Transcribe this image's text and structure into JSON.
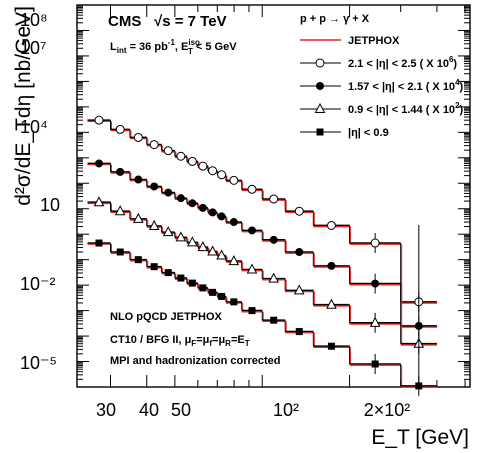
{
  "chart_data": {
    "type": "scatter",
    "xscale": "log",
    "yscale": "log",
    "xlim": [
      23,
      520
    ],
    "ylim": [
      1e-06,
      1000000000.0
    ],
    "xlabel": "E_T [GeV]",
    "ylabel": "d²σ/dE_Tdη [nb/GeV]",
    "x_ticklabels": [
      "30",
      "40",
      "50",
      "10²",
      "2×10²"
    ],
    "x_tick_values": [
      30,
      40,
      50,
      100,
      200
    ],
    "y_ticklabels": [
      "10⁸",
      "10⁷",
      "10⁴",
      "10",
      "10⁻²",
      "10⁻⁵"
    ],
    "y_tick_values": [
      100000000.0,
      10000000.0,
      10000.0,
      10,
      0.01,
      1e-05
    ],
    "bins": [
      [
        25,
        30
      ],
      [
        30,
        35
      ],
      [
        35,
        40
      ],
      [
        40,
        45
      ],
      [
        45,
        50
      ],
      [
        50,
        55
      ],
      [
        55,
        60
      ],
      [
        60,
        65
      ],
      [
        65,
        70
      ],
      [
        70,
        75
      ],
      [
        75,
        85
      ],
      [
        85,
        100
      ],
      [
        100,
        120
      ],
      [
        120,
        150
      ],
      [
        150,
        200
      ],
      [
        200,
        300
      ],
      [
        300,
        400
      ]
    ],
    "series": [
      {
        "name": "2.1 < |η| < 2.5 ( X 10⁶)",
        "marker": "open-circle",
        "values": [
          30000,
          13000,
          6300,
          3300,
          1900,
          1150,
          720,
          470,
          310,
          215,
          130,
          58,
          24,
          8.0,
          2.2,
          0.45,
          0.0022
        ]
      },
      {
        "name": "1.57 < |η| < 2.1 ( X 10⁴)",
        "marker": "filled-circle",
        "values": [
          600,
          280,
          140,
          75,
          43,
          26,
          16.5,
          10.8,
          7.2,
          5.0,
          3.0,
          1.4,
          0.6,
          0.2,
          0.057,
          0.0115,
          0.00025
        ]
      },
      {
        "name": "0.9 < |η| < 1.44 ( X 10²)",
        "marker": "open-triangle",
        "values": [
          18,
          8,
          4,
          2.1,
          1.2,
          0.75,
          0.48,
          0.31,
          0.21,
          0.145,
          0.088,
          0.041,
          0.018,
          0.0062,
          0.0017,
          0.00033,
          5e-05
        ]
      },
      {
        "name": "|η| < 0.9",
        "marker": "filled-square",
        "values": [
          0.45,
          0.2,
          0.1,
          0.053,
          0.031,
          0.019,
          0.012,
          0.0078,
          0.0052,
          0.0036,
          0.0022,
          0.001,
          0.00042,
          0.00015,
          4e-05,
          8e-06,
          1.1e-06
        ]
      }
    ],
    "theory_label": "JETPHOX",
    "theory_color": "#e8251f"
  },
  "texts": {
    "experiment": "CMS",
    "sqrt_s": "√s = 7 TeV",
    "lumi": "L",
    "lumi_sub": "int",
    "lumi_eq": " = 36 pb",
    "lumi_exp": "-1",
    "iso": ", E",
    "iso_sup": "iso",
    "iso_sub": "T",
    "iso_rest": " < 5 GeV",
    "process": "p + p → γ + X",
    "legend_theory": "JETPHOX",
    "legend_s1": "2.1 < |η| < 2.5 ( X 10",
    "legend_s1_exp": "6",
    "legend_s2": "1.57 < |η| < 2.1 ( X 10",
    "legend_s2_exp": "4",
    "legend_s3": "0.9 < |η| < 1.44 ( X 10",
    "legend_s3_exp": "2",
    "legend_s4": "|η| < 0.9",
    "note1": "NLO pQCD JETPHOX",
    "note2a": "CT10 / BFG II, μ",
    "note2b": "=μ",
    "note2c": "=μ",
    "note2d": "=E",
    "note2_sub1": "F",
    "note2_sub2": "f",
    "note2_sub3": "R",
    "note2_sub4": "T",
    "note3": "MPI and hadronization corrected"
  }
}
